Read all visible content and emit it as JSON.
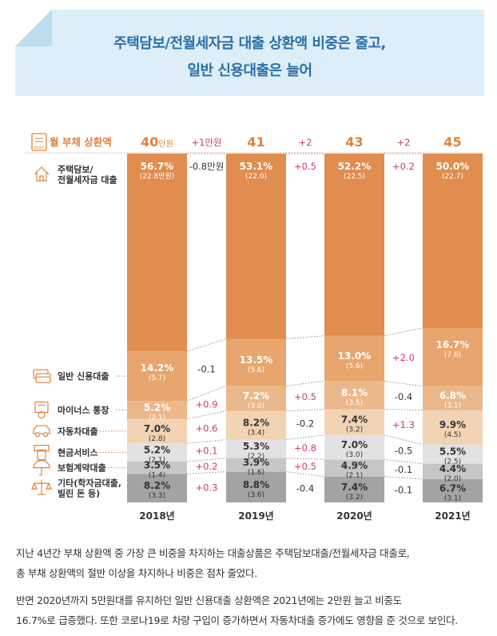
{
  "title": {
    "line1": "주택담보/전월세자금 대출 상환액 비중은 줄고,",
    "line2": "일반 신용대출은 늘어"
  },
  "chart_data": {
    "type": "stacked-bar",
    "title": "월 부채 상환액",
    "unit": "만원",
    "categories": [
      "2018년",
      "2019년",
      "2020년",
      "2021년"
    ],
    "totals": [
      {
        "value": "40",
        "unit": "만원"
      },
      {
        "value": "41",
        "unit": ""
      },
      {
        "value": "43",
        "unit": ""
      },
      {
        "value": "45",
        "unit": ""
      }
    ],
    "total_changes": [
      "+1만원",
      "+2",
      "+2"
    ],
    "series": [
      {
        "name": "기타(학자금대출,\n빌린 돈 등)",
        "label_lines": [
          "기타(학자금대출,",
          "빌린 돈 등)"
        ],
        "icon": "scale-icon",
        "color": "#a3a3a5",
        "label_color": "#333333",
        "values": [
          8.2,
          8.8,
          7.4,
          6.7
        ],
        "pct": [
          "8.2%",
          "8.8%",
          "7.4%",
          "6.7%"
        ],
        "amount": [
          "(3.3)",
          "(3.6)",
          "(3.2)",
          "(3.1)"
        ],
        "changes": [
          "+0.3",
          "-0.4",
          "-0.1"
        ]
      },
      {
        "name": "보험계약대출",
        "label_lines": [
          "보험계약대출"
        ],
        "icon": "umbrella-icon",
        "color": "#c6c6c8",
        "label_color": "#333333",
        "values": [
          3.5,
          3.9,
          4.9,
          4.4
        ],
        "pct": [
          "3.5%",
          "3.9%",
          "4.9%",
          "4.4%"
        ],
        "amount": [
          "(1.4)",
          "(1.6)",
          "(2.1)",
          "(2.0)"
        ],
        "changes": [
          "+0.2",
          "+0.5",
          "-0.1"
        ]
      },
      {
        "name": "현금서비스",
        "label_lines": [
          "현금서비스"
        ],
        "icon": "atm-icon",
        "color": "#e2e2e4",
        "label_color": "#333333",
        "values": [
          5.2,
          5.3,
          7.0,
          5.5
        ],
        "pct": [
          "5.2%",
          "5.3%",
          "7.0%",
          "5.5%"
        ],
        "amount": [
          "(2.1)",
          "(2.2)",
          "(3.0)",
          "(2.5)"
        ],
        "changes": [
          "+0.1",
          "+0.8",
          "-0.5"
        ]
      },
      {
        "name": "자동차대출",
        "label_lines": [
          "자동차대출"
        ],
        "icon": "car-icon",
        "color": "#f2d3b3",
        "label_color": "#333333",
        "values": [
          7.0,
          8.2,
          7.4,
          9.9
        ],
        "pct": [
          "7.0%",
          "8.2%",
          "7.4%",
          "9.9%"
        ],
        "amount": [
          "(2.8)",
          "(3.4)",
          "(3.2)",
          "(4.5)"
        ],
        "changes": [
          "+0.6",
          "-0.2",
          "+1.3"
        ]
      },
      {
        "name": "마이너스 통장",
        "label_lines": [
          "마이너스 통장"
        ],
        "icon": "bankbook-icon",
        "color": "#ebb88b",
        "label_color": "#ffffff",
        "values": [
          5.2,
          7.2,
          8.1,
          6.8
        ],
        "pct": [
          "5.2%",
          "7.2%",
          "8.1%",
          "6.8%"
        ],
        "amount": [
          "(2.1)",
          "(3.0)",
          "(3.5)",
          "(3.1)"
        ],
        "changes": [
          "+0.9",
          "+0.5",
          "-0.4"
        ]
      },
      {
        "name": "일반 신용대출",
        "label_lines": [
          "일반 신용대출"
        ],
        "icon": "credit-card-icon",
        "color": "#e8a56e",
        "label_color": "#ffffff",
        "values": [
          14.2,
          13.5,
          13.0,
          16.7
        ],
        "pct": [
          "14.2%",
          "13.5%",
          "13.0%",
          "16.7%"
        ],
        "amount": [
          "(5.7)",
          "(5.6)",
          "(5.6)",
          "(7.6)"
        ],
        "changes": [
          "-0.1",
          "",
          "+2.0"
        ]
      },
      {
        "name": "주택담보/\n전월세자금 대출",
        "label_lines": [
          "주택담보/",
          "전월세자금 대출"
        ],
        "icon": "house-icon",
        "color": "#e08d4f",
        "label_color": "#ffffff",
        "values": [
          56.7,
          53.1,
          52.2,
          50.0
        ],
        "pct": [
          "56.7%",
          "53.1%",
          "52.2%",
          "50.0%"
        ],
        "amount": [
          "(22.8만원)",
          "(22.0)",
          "(22.5)",
          "(22.7)"
        ],
        "changes": [
          "-0.8만원",
          "+0.5",
          "+0.2"
        ]
      }
    ],
    "colors": {
      "positive": "#d23a6e",
      "negative": "#333333",
      "header": "#e0813a",
      "year": "#333333"
    }
  },
  "paragraphs": [
    {
      "lines": [
        "지난 4년간 부채 상환액 중 가장 큰 비중을 차지하는 대출상품은 주택담보대출/전월세자금 대출로,",
        "총 부채 상환액의 절반 이상을 차지하나 비중은 점차 줄었다."
      ]
    },
    {
      "lines": [
        "반면 2020년까지 5만원대를 유지하던 일반 신용대출 상환액은 2021년에는 2만원 늘고 비중도",
        "16.7%로 급증했다. 또한 코로나19로 차량 구입이 증가하면서 자동차대출 증가에도 영향을 준 것으로 보인다."
      ]
    }
  ]
}
